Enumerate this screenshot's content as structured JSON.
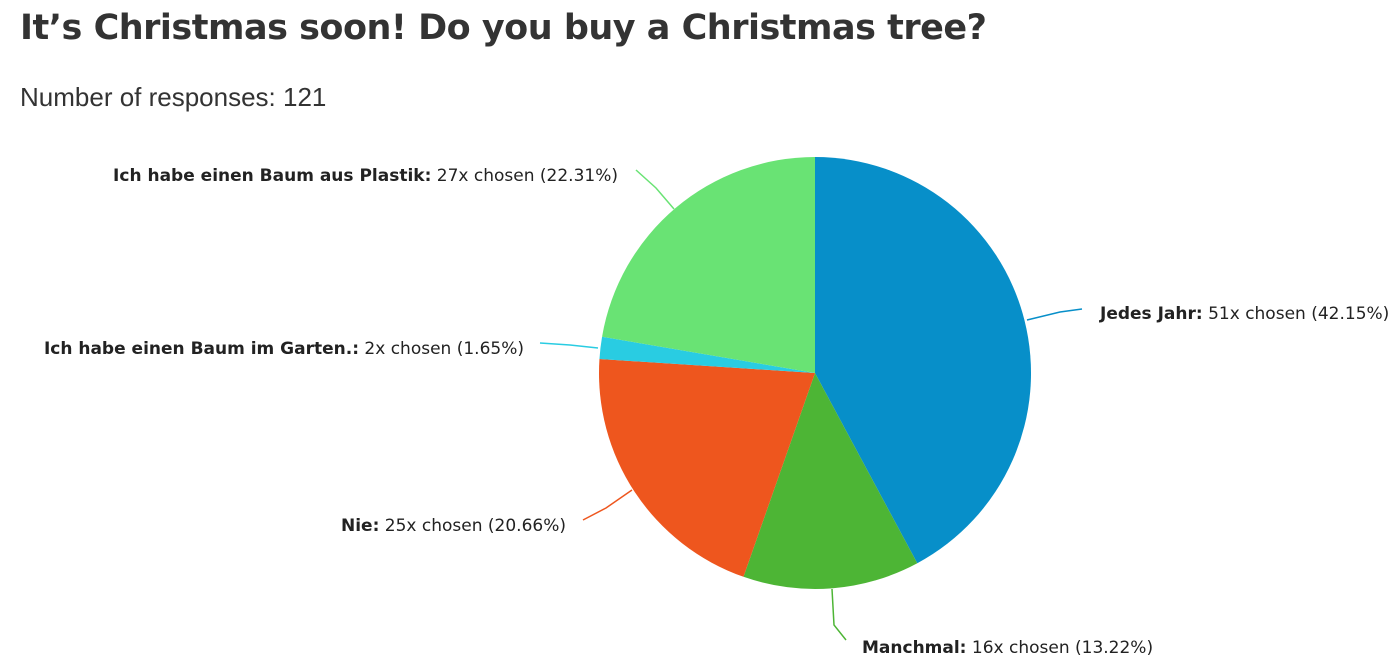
{
  "page": {
    "title": "It’s Christmas soon! Do you buy a Christmas tree?",
    "responses_text": "Number of responses: 121"
  },
  "chart_data": {
    "type": "pie",
    "start_angle_deg": 0,
    "direction": "clockwise",
    "slices": [
      {
        "name": "Jedes Jahr:",
        "detail": "51x chosen (42.15%)",
        "count": 51,
        "percent": 42.15,
        "color": "#078fc9"
      },
      {
        "name": "Manchmal:",
        "detail": "16x chosen (13.22%)",
        "count": 16,
        "percent": 13.22,
        "color": "#4db535"
      },
      {
        "name": "Nie:",
        "detail": "25x chosen (20.66%)",
        "count": 25,
        "percent": 20.66,
        "color": "#ee561e"
      },
      {
        "name": "Ich habe einen Baum im Garten.:",
        "detail": "2x chosen (1.65%)",
        "count": 2,
        "percent": 1.65,
        "color": "#29cce2"
      },
      {
        "name": "Ich habe einen Baum aus Plastik:",
        "detail": "27x chosen (22.31%)",
        "count": 27,
        "percent": 22.31,
        "color": "#69e374"
      }
    ]
  }
}
